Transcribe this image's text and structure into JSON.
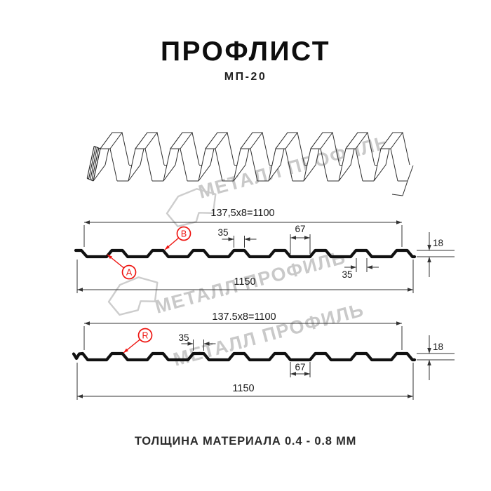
{
  "header": {
    "title": "ПРОФЛИСТ",
    "subtitle": "МП-20"
  },
  "watermark": {
    "brand": "МЕТАЛЛ ПРОФИЛЬ"
  },
  "profile_top": {
    "coverage_width": "137,5x8=1100",
    "overall_width": "1150",
    "crest_width": "35",
    "valley_width": "67",
    "profile_height": "18",
    "crest_base_width": "35",
    "callout_a": "A",
    "callout_b": "B"
  },
  "profile_bottom": {
    "coverage_width": "137.5x8=1100",
    "overall_width": "1150",
    "crest_width": "35",
    "valley_width": "67",
    "profile_height": "18",
    "callout_r": "R"
  },
  "footer": {
    "material_note": "ТОЛЩИНА МАТЕРИАЛА 0.4 - 0.8 ММ"
  },
  "colors": {
    "accent_red": "#ee1511",
    "line": "#1a1a1a",
    "watermark": "#c9c9c9"
  }
}
